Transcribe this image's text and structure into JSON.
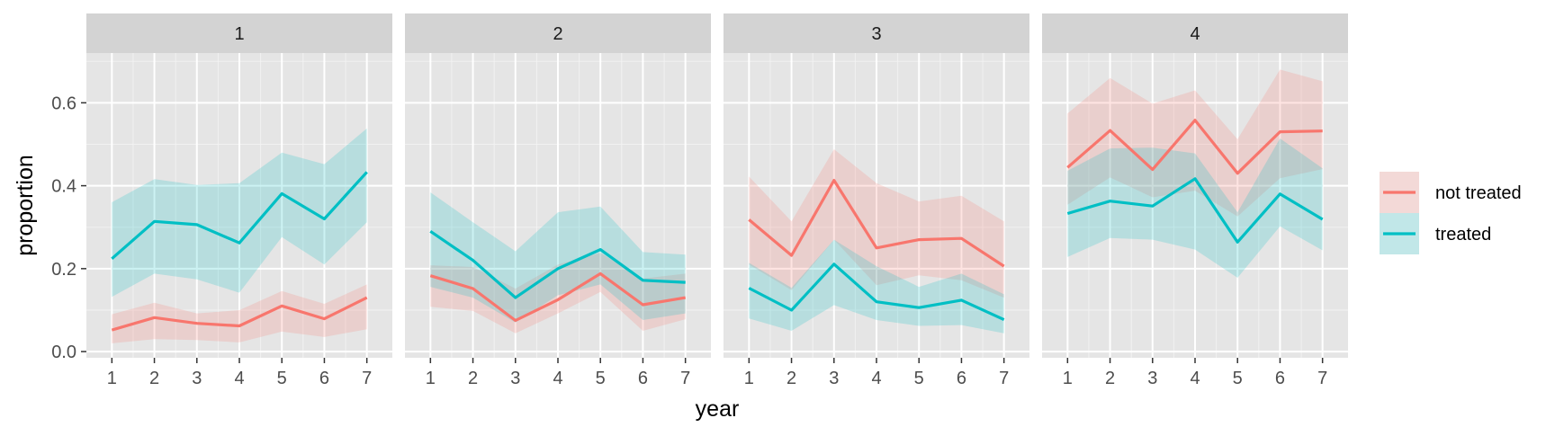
{
  "chart_data": {
    "type": "line",
    "facet_label": "",
    "panels": [
      {
        "label": "1",
        "series": [
          {
            "name": "not treated",
            "values": [
              0.052,
              0.082,
              0.068,
              0.062,
              0.11,
              0.079,
              0.13
            ],
            "lower": [
              0.02,
              0.03,
              0.028,
              0.022,
              0.048,
              0.035,
              0.054
            ],
            "upper": [
              0.09,
              0.118,
              0.092,
              0.1,
              0.146,
              0.115,
              0.162
            ]
          },
          {
            "name": "treated",
            "values": [
              0.224,
              0.314,
              0.306,
              0.262,
              0.381,
              0.32,
              0.433
            ],
            "lower": [
              0.132,
              0.188,
              0.174,
              0.142,
              0.276,
              0.21,
              0.312
            ],
            "upper": [
              0.36,
              0.416,
              0.402,
              0.406,
              0.48,
              0.452,
              0.538
            ]
          }
        ]
      },
      {
        "label": "2",
        "series": [
          {
            "name": "not treated",
            "values": [
              0.183,
              0.152,
              0.075,
              0.125,
              0.188,
              0.113,
              0.13
            ],
            "lower": [
              0.108,
              0.098,
              0.044,
              0.092,
              0.144,
              0.05,
              0.078
            ],
            "upper": [
              0.208,
              0.204,
              0.152,
              0.21,
              0.238,
              0.176,
              0.188
            ]
          },
          {
            "name": "treated",
            "values": [
              0.29,
              0.22,
              0.13,
              0.2,
              0.246,
              0.172,
              0.167
            ],
            "lower": [
              0.156,
              0.13,
              0.07,
              0.136,
              0.162,
              0.076,
              0.092
            ],
            "upper": [
              0.384,
              0.312,
              0.242,
              0.336,
              0.35,
              0.24,
              0.234
            ]
          }
        ]
      },
      {
        "label": "3",
        "series": [
          {
            "name": "not treated",
            "values": [
              0.318,
              0.232,
              0.413,
              0.25,
              0.27,
              0.273,
              0.206
            ],
            "lower": [
              0.21,
              0.148,
              0.27,
              0.16,
              0.184,
              0.172,
              0.13
            ],
            "upper": [
              0.422,
              0.314,
              0.488,
              0.406,
              0.362,
              0.376,
              0.314
            ]
          },
          {
            "name": "treated",
            "values": [
              0.153,
              0.1,
              0.211,
              0.12,
              0.106,
              0.124,
              0.077
            ],
            "lower": [
              0.08,
              0.05,
              0.112,
              0.076,
              0.062,
              0.064,
              0.044
            ],
            "upper": [
              0.214,
              0.154,
              0.27,
              0.206,
              0.156,
              0.188,
              0.138
            ]
          }
        ]
      },
      {
        "label": "4",
        "series": [
          {
            "name": "not treated",
            "values": [
              0.444,
              0.533,
              0.439,
              0.558,
              0.43,
              0.53,
              0.532
            ],
            "lower": [
              0.354,
              0.42,
              0.372,
              0.388,
              0.326,
              0.418,
              0.44
            ],
            "upper": [
              0.574,
              0.66,
              0.598,
              0.63,
              0.512,
              0.68,
              0.652
            ]
          },
          {
            "name": "treated",
            "values": [
              0.333,
              0.363,
              0.351,
              0.417,
              0.264,
              0.38,
              0.319
            ],
            "lower": [
              0.228,
              0.274,
              0.27,
              0.246,
              0.178,
              0.302,
              0.244
            ],
            "upper": [
              0.436,
              0.49,
              0.492,
              0.478,
              0.336,
              0.514,
              0.442
            ]
          }
        ]
      }
    ],
    "x": [
      1,
      2,
      3,
      4,
      5,
      6,
      7
    ],
    "xticks": [
      "1",
      "2",
      "3",
      "4",
      "5",
      "6",
      "7"
    ],
    "yticks": [
      "0.0",
      "0.2",
      "0.4",
      "0.6"
    ],
    "ytick_values": [
      0.0,
      0.2,
      0.4,
      0.6
    ],
    "xlim": [
      0.4,
      7.6
    ],
    "ylim": [
      -0.015,
      0.72
    ],
    "xlabel": "year",
    "ylabel": "proportion",
    "legend": {
      "position": "right",
      "entries": [
        {
          "name": "not treated",
          "color": "#F8766D"
        },
        {
          "name": "treated",
          "color": "#00BFC4"
        }
      ]
    },
    "grid": true,
    "colors": {
      "panel_bg": "#E5E5E5",
      "strip_bg": "#D3D3D3",
      "grid_major": "#FFFFFF",
      "not_treated": "#F8766D",
      "treated": "#00BFC4"
    }
  }
}
